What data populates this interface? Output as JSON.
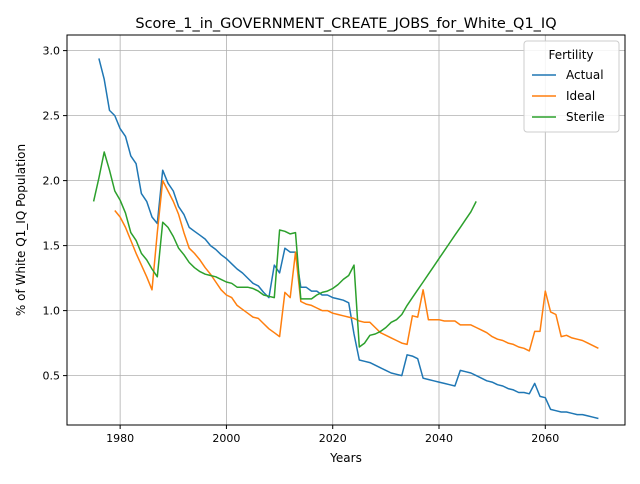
{
  "chart_data": {
    "type": "line",
    "title": "Score_1_in_GOVERNMENT_CREATE_JOBS_for_White_Q1_IQ",
    "xlabel": "Years",
    "ylabel": "% of White Q1_IQ Population",
    "xlim": [
      1970,
      2075
    ],
    "ylim": [
      0.12,
      3.12
    ],
    "xticks": [
      1980,
      2000,
      2020,
      2040,
      2060
    ],
    "yticks": [
      0.5,
      1.0,
      1.5,
      2.0,
      2.5,
      3.0
    ],
    "xtick_labels": [
      "1980",
      "2000",
      "2020",
      "2040",
      "2060"
    ],
    "ytick_labels": [
      "0.5",
      "1.0",
      "1.5",
      "2.0",
      "2.5",
      "3.0"
    ],
    "grid": true,
    "legend": {
      "title": "Fertility",
      "placement": "top-right"
    },
    "series": [
      {
        "name": "Actual",
        "color": "#1f77b4",
        "points": [
          [
            1976,
            2.94
          ],
          [
            1977,
            2.78
          ],
          [
            1978,
            2.54
          ],
          [
            1979,
            2.5
          ],
          [
            1980,
            2.4
          ],
          [
            1981,
            2.34
          ],
          [
            1982,
            2.19
          ],
          [
            1983,
            2.13
          ],
          [
            1984,
            1.9
          ],
          [
            1985,
            1.84
          ],
          [
            1986,
            1.72
          ],
          [
            1987,
            1.67
          ],
          [
            1988,
            2.08
          ],
          [
            1989,
            1.98
          ],
          [
            1990,
            1.92
          ],
          [
            1991,
            1.8
          ],
          [
            1992,
            1.74
          ],
          [
            1993,
            1.64
          ],
          [
            1994,
            1.61
          ],
          [
            1995,
            1.58
          ],
          [
            1996,
            1.55
          ],
          [
            1997,
            1.5
          ],
          [
            1998,
            1.47
          ],
          [
            1999,
            1.43
          ],
          [
            2000,
            1.4
          ],
          [
            2001,
            1.36
          ],
          [
            2002,
            1.32
          ],
          [
            2003,
            1.29
          ],
          [
            2004,
            1.25
          ],
          [
            2005,
            1.21
          ],
          [
            2006,
            1.19
          ],
          [
            2007,
            1.14
          ],
          [
            2008,
            1.1
          ],
          [
            2009,
            1.35
          ],
          [
            2010,
            1.29
          ],
          [
            2011,
            1.48
          ],
          [
            2012,
            1.45
          ],
          [
            2013,
            1.45
          ],
          [
            2014,
            1.18
          ],
          [
            2015,
            1.18
          ],
          [
            2016,
            1.15
          ],
          [
            2017,
            1.15
          ],
          [
            2018,
            1.12
          ],
          [
            2019,
            1.12
          ],
          [
            2020,
            1.1
          ],
          [
            2021,
            1.09
          ],
          [
            2022,
            1.08
          ],
          [
            2023,
            1.06
          ],
          [
            2024,
            0.82
          ],
          [
            2025,
            0.62
          ],
          [
            2026,
            0.61
          ],
          [
            2027,
            0.6
          ],
          [
            2028,
            0.58
          ],
          [
            2029,
            0.56
          ],
          [
            2030,
            0.54
          ],
          [
            2031,
            0.52
          ],
          [
            2032,
            0.51
          ],
          [
            2033,
            0.5
          ],
          [
            2034,
            0.66
          ],
          [
            2035,
            0.65
          ],
          [
            2036,
            0.63
          ],
          [
            2037,
            0.48
          ],
          [
            2038,
            0.47
          ],
          [
            2039,
            0.46
          ],
          [
            2040,
            0.45
          ],
          [
            2041,
            0.44
          ],
          [
            2042,
            0.43
          ],
          [
            2043,
            0.42
          ],
          [
            2044,
            0.54
          ],
          [
            2045,
            0.53
          ],
          [
            2046,
            0.52
          ],
          [
            2047,
            0.5
          ],
          [
            2048,
            0.48
          ],
          [
            2049,
            0.46
          ],
          [
            2050,
            0.45
          ],
          [
            2051,
            0.43
          ],
          [
            2052,
            0.42
          ],
          [
            2053,
            0.4
          ],
          [
            2054,
            0.39
          ],
          [
            2055,
            0.37
          ],
          [
            2056,
            0.37
          ],
          [
            2057,
            0.36
          ],
          [
            2058,
            0.44
          ],
          [
            2059,
            0.34
          ],
          [
            2060,
            0.33
          ],
          [
            2061,
            0.24
          ],
          [
            2062,
            0.23
          ],
          [
            2063,
            0.22
          ],
          [
            2064,
            0.22
          ],
          [
            2065,
            0.21
          ],
          [
            2066,
            0.2
          ],
          [
            2067,
            0.2
          ],
          [
            2068,
            0.19
          ],
          [
            2069,
            0.18
          ],
          [
            2070,
            0.17
          ]
        ]
      },
      {
        "name": "Ideal",
        "color": "#ff7f0e",
        "points": [
          [
            1979,
            1.77
          ],
          [
            1980,
            1.72
          ],
          [
            1981,
            1.64
          ],
          [
            1982,
            1.54
          ],
          [
            1983,
            1.44
          ],
          [
            1984,
            1.35
          ],
          [
            1985,
            1.26
          ],
          [
            1986,
            1.16
          ],
          [
            1987,
            1.6
          ],
          [
            1988,
            2.0
          ],
          [
            1989,
            1.92
          ],
          [
            1990,
            1.84
          ],
          [
            1991,
            1.74
          ],
          [
            1992,
            1.6
          ],
          [
            1993,
            1.48
          ],
          [
            1994,
            1.44
          ],
          [
            1995,
            1.39
          ],
          [
            1996,
            1.33
          ],
          [
            1997,
            1.28
          ],
          [
            1998,
            1.22
          ],
          [
            1999,
            1.16
          ],
          [
            2000,
            1.12
          ],
          [
            2001,
            1.1
          ],
          [
            2002,
            1.04
          ],
          [
            2003,
            1.01
          ],
          [
            2004,
            0.98
          ],
          [
            2005,
            0.95
          ],
          [
            2006,
            0.94
          ],
          [
            2007,
            0.9
          ],
          [
            2008,
            0.86
          ],
          [
            2009,
            0.83
          ],
          [
            2010,
            0.8
          ],
          [
            2011,
            1.14
          ],
          [
            2012,
            1.1
          ],
          [
            2013,
            1.45
          ],
          [
            2014,
            1.07
          ],
          [
            2015,
            1.05
          ],
          [
            2016,
            1.04
          ],
          [
            2017,
            1.02
          ],
          [
            2018,
            1.0
          ],
          [
            2019,
            1.0
          ],
          [
            2020,
            0.98
          ],
          [
            2021,
            0.97
          ],
          [
            2022,
            0.96
          ],
          [
            2023,
            0.95
          ],
          [
            2024,
            0.94
          ],
          [
            2025,
            0.92
          ],
          [
            2026,
            0.91
          ],
          [
            2027,
            0.91
          ],
          [
            2028,
            0.87
          ],
          [
            2029,
            0.83
          ],
          [
            2030,
            0.81
          ],
          [
            2031,
            0.79
          ],
          [
            2032,
            0.77
          ],
          [
            2033,
            0.75
          ],
          [
            2034,
            0.74
          ],
          [
            2035,
            0.96
          ],
          [
            2036,
            0.95
          ],
          [
            2037,
            1.16
          ],
          [
            2038,
            0.93
          ],
          [
            2039,
            0.93
          ],
          [
            2040,
            0.93
          ],
          [
            2041,
            0.92
          ],
          [
            2042,
            0.92
          ],
          [
            2043,
            0.92
          ],
          [
            2044,
            0.89
          ],
          [
            2045,
            0.89
          ],
          [
            2046,
            0.89
          ],
          [
            2047,
            0.87
          ],
          [
            2048,
            0.85
          ],
          [
            2049,
            0.83
          ],
          [
            2050,
            0.8
          ],
          [
            2051,
            0.78
          ],
          [
            2052,
            0.77
          ],
          [
            2053,
            0.75
          ],
          [
            2054,
            0.74
          ],
          [
            2055,
            0.72
          ],
          [
            2056,
            0.71
          ],
          [
            2057,
            0.69
          ],
          [
            2058,
            0.84
          ],
          [
            2059,
            0.84
          ],
          [
            2060,
            1.15
          ],
          [
            2061,
            0.99
          ],
          [
            2062,
            0.97
          ],
          [
            2063,
            0.8
          ],
          [
            2064,
            0.81
          ],
          [
            2065,
            0.79
          ],
          [
            2066,
            0.78
          ],
          [
            2067,
            0.77
          ],
          [
            2068,
            0.75
          ],
          [
            2069,
            0.73
          ],
          [
            2070,
            0.71
          ]
        ]
      },
      {
        "name": "Sterile",
        "color": "#2ca02c",
        "points": [
          [
            1975,
            1.84
          ],
          [
            1976,
            2.02
          ],
          [
            1977,
            2.22
          ],
          [
            1978,
            2.08
          ],
          [
            1979,
            1.92
          ],
          [
            1980,
            1.85
          ],
          [
            1981,
            1.75
          ],
          [
            1982,
            1.6
          ],
          [
            1983,
            1.54
          ],
          [
            1984,
            1.44
          ],
          [
            1985,
            1.39
          ],
          [
            1986,
            1.32
          ],
          [
            1987,
            1.26
          ],
          [
            1988,
            1.68
          ],
          [
            1989,
            1.64
          ],
          [
            1990,
            1.57
          ],
          [
            1991,
            1.48
          ],
          [
            1992,
            1.43
          ],
          [
            1993,
            1.37
          ],
          [
            1994,
            1.33
          ],
          [
            1995,
            1.3
          ],
          [
            1996,
            1.28
          ],
          [
            1997,
            1.27
          ],
          [
            1998,
            1.26
          ],
          [
            1999,
            1.24
          ],
          [
            2000,
            1.22
          ],
          [
            2001,
            1.21
          ],
          [
            2002,
            1.18
          ],
          [
            2003,
            1.18
          ],
          [
            2004,
            1.18
          ],
          [
            2005,
            1.17
          ],
          [
            2006,
            1.15
          ],
          [
            2007,
            1.12
          ],
          [
            2008,
            1.11
          ],
          [
            2009,
            1.1
          ],
          [
            2010,
            1.62
          ],
          [
            2011,
            1.61
          ],
          [
            2012,
            1.59
          ],
          [
            2013,
            1.6
          ],
          [
            2014,
            1.09
          ],
          [
            2015,
            1.09
          ],
          [
            2016,
            1.09
          ],
          [
            2017,
            1.12
          ],
          [
            2018,
            1.14
          ],
          [
            2019,
            1.15
          ],
          [
            2020,
            1.17
          ],
          [
            2021,
            1.2
          ],
          [
            2022,
            1.24
          ],
          [
            2023,
            1.27
          ],
          [
            2024,
            1.35
          ],
          [
            2025,
            0.72
          ],
          [
            2026,
            0.75
          ],
          [
            2027,
            0.81
          ],
          [
            2028,
            0.82
          ],
          [
            2029,
            0.84
          ],
          [
            2030,
            0.87
          ],
          [
            2031,
            0.91
          ],
          [
            2032,
            0.93
          ],
          [
            2033,
            0.97
          ],
          [
            2034,
            1.04
          ],
          [
            2035,
            1.1
          ],
          [
            2036,
            1.16
          ],
          [
            2037,
            1.22
          ],
          [
            2038,
            1.28
          ],
          [
            2039,
            1.34
          ],
          [
            2040,
            1.4
          ],
          [
            2041,
            1.46
          ],
          [
            2042,
            1.52
          ],
          [
            2043,
            1.58
          ],
          [
            2044,
            1.64
          ],
          [
            2045,
            1.7
          ],
          [
            2046,
            1.76
          ],
          [
            2047,
            1.84
          ]
        ]
      }
    ]
  }
}
